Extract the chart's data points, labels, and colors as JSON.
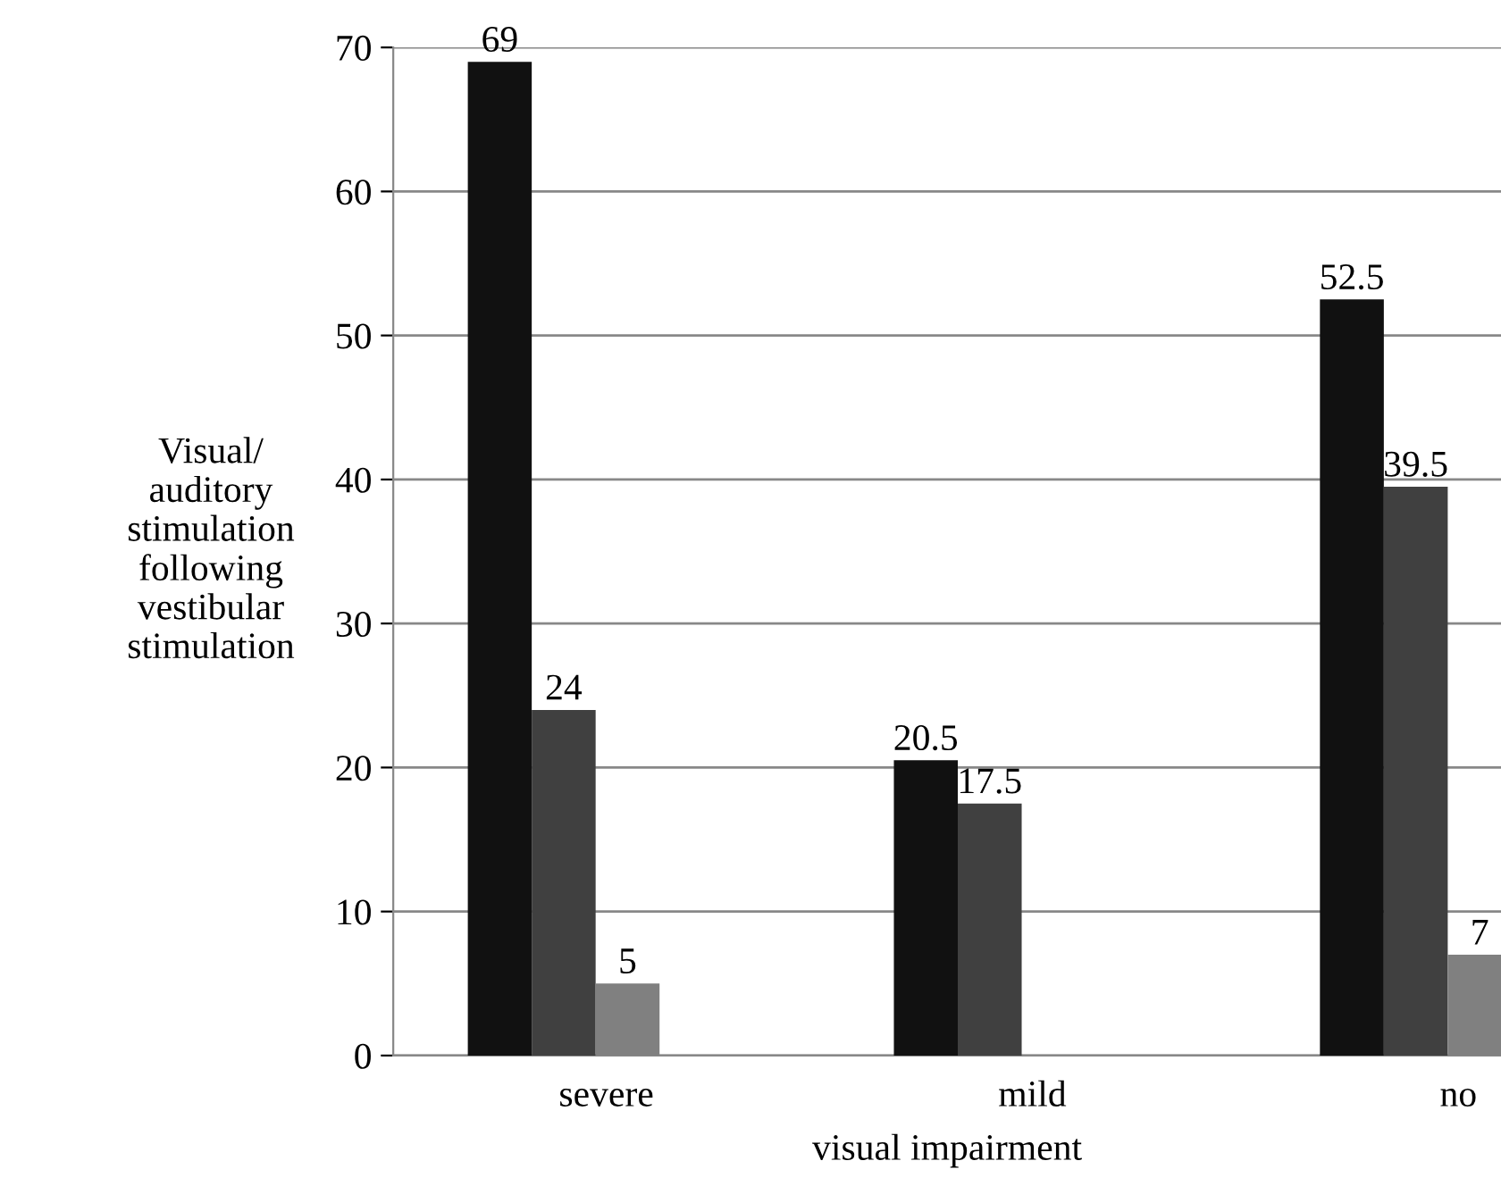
{
  "chart_data": {
    "type": "bar",
    "categories": [
      "severe",
      "mild",
      "no"
    ],
    "series": [
      {
        "color": "#111111",
        "values": [
          69,
          20.5,
          52.5
        ],
        "value_labels": [
          "69",
          "20.5",
          "52.5"
        ]
      },
      {
        "color": "#404040",
        "values": [
          24,
          17.5,
          39.5
        ],
        "value_labels": [
          "24",
          "17.5",
          "39.5"
        ]
      },
      {
        "color": "#808080",
        "values": [
          5,
          0,
          7
        ],
        "value_labels": [
          "5",
          null,
          "7"
        ]
      }
    ],
    "xlabel": "visual impairment",
    "ylabel": "Visual/\nauditory\nstimulation\nfollowing\nvestibular\nstimulation",
    "ylim": [
      0,
      70
    ],
    "yticks": [
      0,
      10,
      20,
      30,
      40,
      50,
      60,
      70
    ],
    "grid": "y",
    "legend": false
  }
}
